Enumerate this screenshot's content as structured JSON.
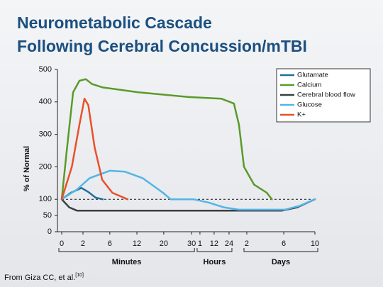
{
  "chart_data": {
    "type": "line",
    "title": [
      "Neurometabolic Cascade",
      "Following Cerebral Concussion/mTBI"
    ],
    "y_label": "% of Normal",
    "source": "From Giza CC, et al.",
    "source_ref": "[10]",
    "x_groups": [
      "Minutes",
      "Hours",
      "Days"
    ],
    "xlim": [
      0,
      10
    ],
    "xticks": [
      {
        "value": 0,
        "label": "0"
      },
      {
        "value": 0.84,
        "label": "2"
      },
      {
        "value": 1.9,
        "label": "6"
      },
      {
        "value": 2.97,
        "label": "12"
      },
      {
        "value": 4.03,
        "label": "20"
      },
      {
        "value": 5.13,
        "label": "30"
      },
      {
        "value": 5.46,
        "label": "1"
      },
      {
        "value": 6.02,
        "label": "12"
      },
      {
        "value": 6.61,
        "label": "24"
      },
      {
        "value": 7.31,
        "label": "2"
      },
      {
        "value": 8.77,
        "label": "6"
      },
      {
        "value": 10,
        "label": "10"
      }
    ],
    "ylim": [
      0,
      500
    ],
    "yticks": [
      0,
      50,
      100,
      200,
      300,
      400,
      500
    ],
    "reference_line": 100,
    "legend": "top-right",
    "series": [
      {
        "name": "Glutamate",
        "color": "#1f6f9a",
        "x": [
          0,
          0.36,
          0.78,
          1.06,
          1.34,
          1.62
        ],
        "values": [
          100,
          120,
          135,
          122,
          105,
          100
        ]
      },
      {
        "name": "Calcium",
        "color": "#5a9a2a",
        "x": [
          0,
          0.2,
          0.45,
          0.7,
          0.95,
          1.2,
          1.6,
          3,
          5,
          6.3,
          6.8,
          7.0,
          7.2,
          7.6,
          8.1,
          8.3
        ],
        "values": [
          100,
          250,
          430,
          465,
          470,
          455,
          445,
          430,
          415,
          410,
          395,
          330,
          200,
          145,
          120,
          100
        ]
      },
      {
        "name": "Cerebral blood flow",
        "color": "#3a3f44",
        "x": [
          0,
          0.3,
          0.6,
          3,
          6,
          7,
          8.7,
          9.3,
          10
        ],
        "values": [
          100,
          75,
          65,
          65,
          65,
          65,
          65,
          75,
          100
        ]
      },
      {
        "name": "Glucose",
        "color": "#55b4e6",
        "x": [
          0,
          0.6,
          1.1,
          1.9,
          2.5,
          3.2,
          4.0,
          4.3,
          5.2,
          5.8,
          6.4,
          7,
          8,
          8.8,
          9.4,
          10
        ],
        "values": [
          100,
          130,
          165,
          188,
          185,
          165,
          120,
          100,
          100,
          90,
          75,
          68,
          68,
          68,
          80,
          100
        ]
      },
      {
        "name": "K+",
        "color": "#e8502a",
        "x": [
          0,
          0.4,
          0.7,
          0.9,
          1.05,
          1.3,
          1.6,
          2,
          2.6
        ],
        "values": [
          100,
          200,
          330,
          410,
          390,
          260,
          160,
          120,
          100
        ]
      }
    ]
  }
}
